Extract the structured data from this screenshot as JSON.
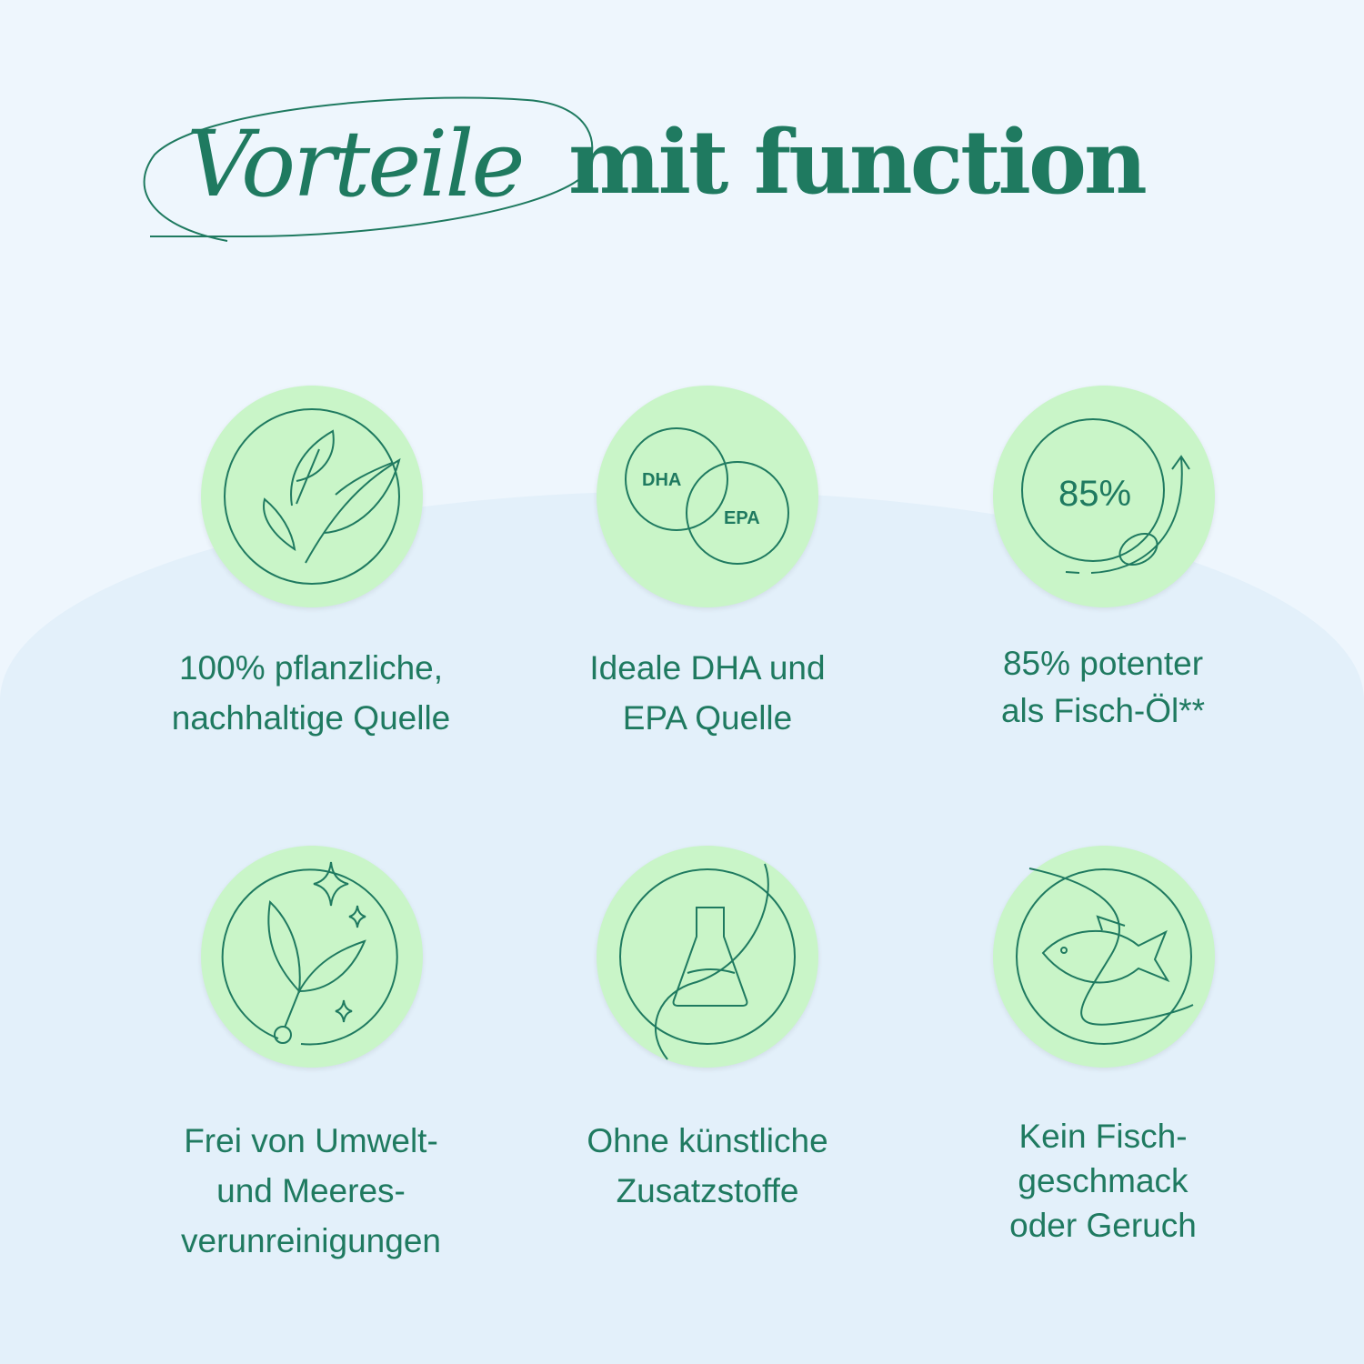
{
  "title": {
    "italic": "Vorteile",
    "bold": "mit function"
  },
  "colors": {
    "background": "#eef6fd",
    "circle": "#c9f5c8",
    "accent": "#1f7a60"
  },
  "benefits": [
    {
      "icon": "leaves-icon",
      "lines": [
        "100% pflanzliche,",
        "nachhaltige Quelle"
      ]
    },
    {
      "icon": "dha-epa-venn-icon",
      "icon_text": [
        "DHA",
        "EPA"
      ],
      "lines": [
        "Ideale DHA und",
        "EPA Quelle"
      ]
    },
    {
      "icon": "percent-arrow-icon",
      "icon_text": [
        "85%"
      ],
      "lines": [
        "85% potenter",
        "als Fisch-Öl**"
      ]
    },
    {
      "icon": "sparkling-leaf-icon",
      "lines": [
        "Frei von Umwelt-",
        "und Meeres-",
        "verunreinigungen"
      ]
    },
    {
      "icon": "flask-icon",
      "lines": [
        "Ohne künstliche",
        "Zusatzstoffe"
      ]
    },
    {
      "icon": "fish-icon",
      "lines": [
        "Kein Fisch-",
        "geschmack",
        "oder Geruch"
      ]
    }
  ]
}
